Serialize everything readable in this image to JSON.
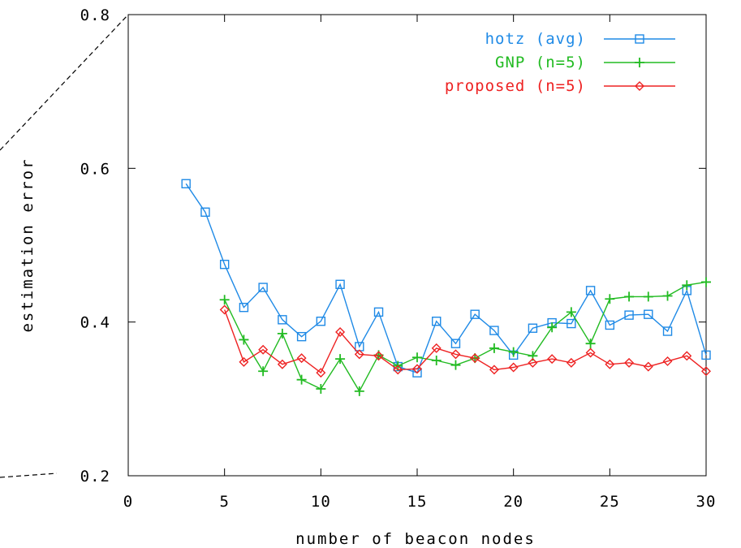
{
  "chart_data": {
    "type": "line",
    "xlabel": "number of beacon nodes",
    "ylabel": "estimation error",
    "xlim": [
      0,
      30
    ],
    "ylim": [
      0.2,
      0.8
    ],
    "xticks": [
      0,
      5,
      10,
      15,
      20,
      25,
      30
    ],
    "yticks": [
      0.2,
      0.4,
      0.6,
      0.8
    ],
    "xtick_labels": [
      "0",
      "5",
      "10",
      "15",
      "20",
      "25",
      "30"
    ],
    "ytick_labels": [
      "0.2",
      "0.4",
      "0.6",
      "0.8"
    ],
    "grid": false,
    "legend_position": "top-right",
    "series": [
      {
        "name": "hotz (avg)",
        "color": "#1f8ae6",
        "marker": "square",
        "x": [
          3,
          4,
          5,
          6,
          7,
          8,
          9,
          10,
          11,
          12,
          13,
          14,
          15,
          16,
          17,
          18,
          19,
          20,
          21,
          22,
          23,
          24,
          25,
          26,
          27,
          28,
          29,
          30
        ],
        "y": [
          0.58,
          0.543,
          0.475,
          0.419,
          0.445,
          0.403,
          0.381,
          0.401,
          0.449,
          0.368,
          0.413,
          0.342,
          0.334,
          0.401,
          0.372,
          0.41,
          0.389,
          0.357,
          0.392,
          0.399,
          0.398,
          0.441,
          0.396,
          0.409,
          0.41,
          0.388,
          0.441,
          0.357
        ]
      },
      {
        "name": "GNP (n=5)",
        "color": "#22bb22",
        "marker": "plus",
        "x": [
          5,
          6,
          7,
          8,
          9,
          10,
          11,
          12,
          13,
          14,
          15,
          16,
          17,
          18,
          19,
          20,
          21,
          22,
          23,
          24,
          25,
          26,
          27,
          28,
          29,
          30
        ],
        "y": [
          0.429,
          0.377,
          0.336,
          0.385,
          0.325,
          0.313,
          0.352,
          0.31,
          0.357,
          0.343,
          0.354,
          0.35,
          0.344,
          0.353,
          0.366,
          0.361,
          0.356,
          0.393,
          0.413,
          0.372,
          0.43,
          0.433,
          0.433,
          0.434,
          0.448,
          0.452
        ]
      },
      {
        "name": "proposed (n=5)",
        "color": "#ee2222",
        "marker": "diamond",
        "x": [
          5,
          6,
          7,
          8,
          9,
          10,
          11,
          12,
          13,
          14,
          15,
          16,
          17,
          18,
          19,
          20,
          21,
          22,
          23,
          24,
          25,
          26,
          27,
          28,
          29,
          30
        ],
        "y": [
          0.416,
          0.348,
          0.364,
          0.345,
          0.353,
          0.334,
          0.387,
          0.358,
          0.356,
          0.338,
          0.339,
          0.366,
          0.358,
          0.353,
          0.338,
          0.341,
          0.347,
          0.352,
          0.347,
          0.36,
          0.345,
          0.347,
          0.342,
          0.349,
          0.356,
          0.336
        ]
      }
    ]
  }
}
